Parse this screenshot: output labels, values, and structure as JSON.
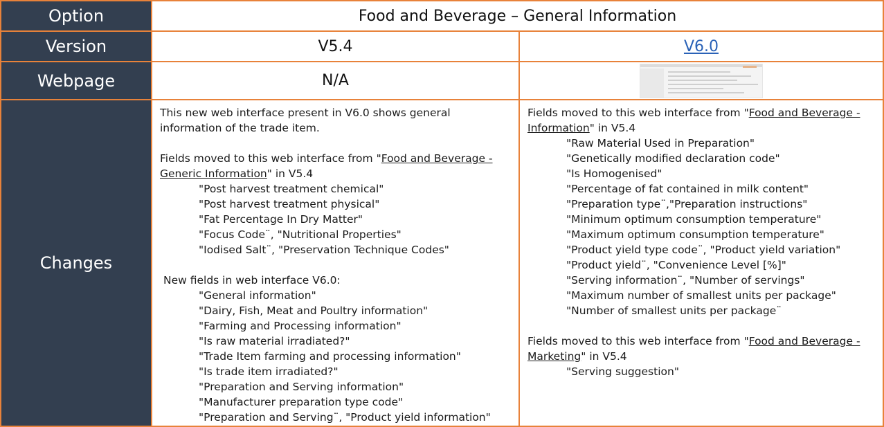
{
  "labels": {
    "option": "Option",
    "version": "Version",
    "webpage": "Webpage",
    "changes": "Changes"
  },
  "option_value": "Food and Beverage – General Information",
  "version": {
    "old": "V5.4",
    "new": "V6.0"
  },
  "webpage": {
    "old": "N/A"
  },
  "changes": {
    "left": {
      "intro_1": "This new web interface present in V6.0 shows general",
      "intro_2": "information of the trade item.",
      "moved": {
        "prefix": "Fields moved to this web interface from \"",
        "link_1": "Food and Beverage -",
        "link_2": "Generic Information",
        "suffix": "\" in V5.4",
        "items": [
          "\"Post harvest treatment chemical\"",
          "\"Post harvest treatment physical\"",
          "\"Fat Percentage In Dry Matter\"",
          "\"Focus Code¨, \"Nutritional Properties\"",
          "\"Iodised Salt¨, \"Preservation Technique Codes\""
        ]
      },
      "new_fields": {
        "header": "New fields in web interface V6.0:",
        "items": [
          "\"General information\"",
          "\"Dairy, Fish, Meat and Poultry information\"",
          "\"Farming and Processing information\"",
          "\"Is raw material irradiated?\"",
          "\"Trade Item farming and processing information\"",
          "\"Is trade item irradiated?\"",
          "\"Preparation and Serving information\"",
          "\"Manufacturer preparation type code\"",
          "\"Preparation and Serving¨, \"Product yield information\""
        ]
      }
    },
    "right": {
      "moved_1": {
        "prefix": "Fields moved to this web interface from \"",
        "link_1": "Food and Beverage -",
        "link_2": "Information",
        "suffix": "\" in V5.4",
        "items": [
          "\"Raw Material Used in Preparation\"",
          "\"Genetically modified declaration code\"",
          "\"Is Homogenised\"",
          "\"Percentage of fat contained in milk content\"",
          "\"Preparation type¨,\"Preparation instructions\"",
          "\"Minimum optimum consumption temperature\"",
          "\"Maximum optimum consumption temperature\"",
          "\"Product yield type code¨, \"Product yield variation\"",
          "\"Product yield¨, \"Convenience Level [%]\"",
          "\"Serving information¨, \"Number of servings\"",
          "\"Maximum number of smallest units per package\"",
          "\"Number of smallest units per package¨"
        ]
      },
      "moved_2": {
        "prefix": "Fields moved to this web interface from \"",
        "link_1": "Food and Beverage -",
        "link_2": "Marketing",
        "suffix": "\" in V5.4",
        "items": [
          "\"Serving suggestion\""
        ]
      }
    }
  }
}
